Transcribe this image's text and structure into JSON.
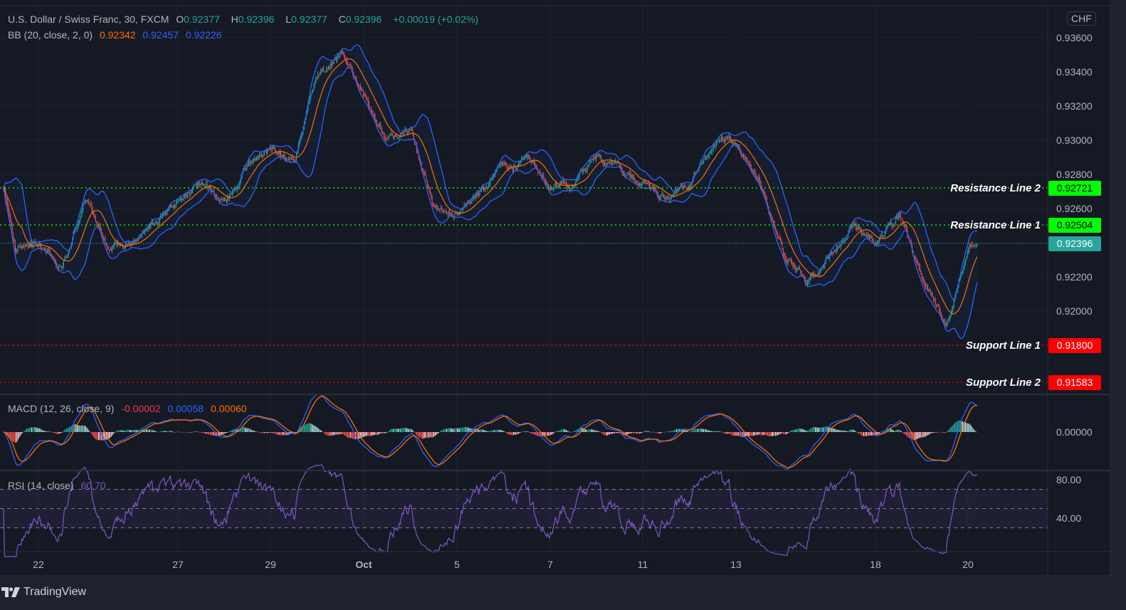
{
  "header": {
    "symbol": "U.S. Dollar / Swiss Franc, 30, FXCM",
    "o_label": "O",
    "o": "0.92377",
    "h_label": "H",
    "h": "0.92396",
    "l_label": "L",
    "l": "0.92377",
    "c_label": "C",
    "c": "0.92396",
    "change": "+0.00019 (+0.02%)",
    "bb_label": "BB (20, close, 2, 0)",
    "bb_basis": "0.92342",
    "bb_upper": "0.92457",
    "bb_lower": "0.92226",
    "currency": "CHF"
  },
  "macd_legend": {
    "label": "MACD (12, 26, close, 9)",
    "hist": "-0.00002",
    "macd": "0.00058",
    "signal": "0.00060"
  },
  "rsi_legend": {
    "label": "RSI (14, close)",
    "value": "60.70"
  },
  "footer": {
    "brand": "TradingView"
  },
  "colors": {
    "background": "#151924",
    "up": "#26a69a",
    "down": "#ef5350",
    "bb_basis": "#ff6d00",
    "bb_band": "#2962ff",
    "macd": "#2962ff",
    "signal": "#ff6d00",
    "rsi": "#7e57c2",
    "resistance": "#00ff00",
    "support": "#ff0000",
    "last_price": "#26a69a"
  },
  "chart_data": {
    "type": "candlestick",
    "title": "U.S. Dollar / Swiss Franc, 30, FXCM",
    "timeframe": "30",
    "ylim": [
      0.91517,
      0.93788
    ],
    "y_ticks": [
      "0.93600",
      "0.93400",
      "0.93200",
      "0.93000",
      "0.92800",
      "0.92600",
      "0.92200",
      "0.92000"
    ],
    "x_ticks": [
      "22",
      "27",
      "29",
      "Oct",
      "5",
      "7",
      "11",
      "13",
      "18",
      "20"
    ],
    "grid": true,
    "last_price": "0.92396",
    "levels": [
      {
        "label": "Resistance Line 2",
        "value": "0.92721",
        "kind": "resistance"
      },
      {
        "label": "Resistance Line 1",
        "value": "0.92504",
        "kind": "resistance"
      },
      {
        "label": "Support Line 1",
        "value": "0.91800",
        "kind": "support"
      },
      {
        "label": "Support Line 2",
        "value": "0.91583",
        "kind": "support"
      }
    ],
    "close_path": [
      {
        "t": "Sep 21 06:00",
        "close": 0.9271
      },
      {
        "t": "Sep 21 12:00",
        "close": 0.9236
      },
      {
        "t": "Sep 22 00:00",
        "close": 0.924
      },
      {
        "t": "Sep 22 12:00",
        "close": 0.9224
      },
      {
        "t": "Sep 23 00:00",
        "close": 0.9265
      },
      {
        "t": "Sep 23 12:00",
        "close": 0.9236
      },
      {
        "t": "Sep 24 00:00",
        "close": 0.924
      },
      {
        "t": "Sep 24 12:00",
        "close": 0.9249
      },
      {
        "t": "Sep 27 00:00",
        "close": 0.9262
      },
      {
        "t": "Sep 27 12:00",
        "close": 0.9275
      },
      {
        "t": "Sep 28 00:00",
        "close": 0.9262
      },
      {
        "t": "Sep 28 12:00",
        "close": 0.9285
      },
      {
        "t": "Sep 29 00:00",
        "close": 0.9294
      },
      {
        "t": "Sep 29 12:00",
        "close": 0.929
      },
      {
        "t": "Sep 30 00:00",
        "close": 0.934
      },
      {
        "t": "Sep 30 12:00",
        "close": 0.9352
      },
      {
        "t": "Oct 1 00:00",
        "close": 0.9324
      },
      {
        "t": "Oct 1 12:00",
        "close": 0.9302
      },
      {
        "t": "Oct 4 00:00",
        "close": 0.9305
      },
      {
        "t": "Oct 4 12:00",
        "close": 0.926
      },
      {
        "t": "Oct 5 00:00",
        "close": 0.9258
      },
      {
        "t": "Oct 5 12:00",
        "close": 0.927
      },
      {
        "t": "Oct 6 00:00",
        "close": 0.9285
      },
      {
        "t": "Oct 6 12:00",
        "close": 0.929
      },
      {
        "t": "Oct 7 00:00",
        "close": 0.9274
      },
      {
        "t": "Oct 7 12:00",
        "close": 0.9275
      },
      {
        "t": "Oct 8 00:00",
        "close": 0.9292
      },
      {
        "t": "Oct 8 12:00",
        "close": 0.928
      },
      {
        "t": "Oct 11 00:00",
        "close": 0.9275
      },
      {
        "t": "Oct 11 12:00",
        "close": 0.9265
      },
      {
        "t": "Oct 12 00:00",
        "close": 0.9275
      },
      {
        "t": "Oct 12 12:00",
        "close": 0.93
      },
      {
        "t": "Oct 13 00:00",
        "close": 0.93
      },
      {
        "t": "Oct 13 12:00",
        "close": 0.9275
      },
      {
        "t": "Oct 14 00:00",
        "close": 0.9236
      },
      {
        "t": "Oct 14 12:00",
        "close": 0.9215
      },
      {
        "t": "Oct 15 00:00",
        "close": 0.9234
      },
      {
        "t": "Oct 15 12:00",
        "close": 0.925
      },
      {
        "t": "Oct 18 00:00",
        "close": 0.924
      },
      {
        "t": "Oct 18 12:00",
        "close": 0.9255
      },
      {
        "t": "Oct 19 00:00",
        "close": 0.9218
      },
      {
        "t": "Oct 19 12:00",
        "close": 0.919
      },
      {
        "t": "Oct 20 00:00",
        "close": 0.9235
      },
      {
        "t": "Oct 20 04:00",
        "close": 0.92396
      }
    ],
    "indicators": {
      "bb": {
        "period": 20,
        "stddev": 2
      },
      "macd": {
        "fast": 12,
        "slow": 26,
        "signal": 9,
        "y_tick": "0.00000"
      },
      "rsi": {
        "period": 14,
        "y_ticks": [
          "80.00",
          "40.00"
        ],
        "bands": [
          70,
          50,
          30
        ]
      }
    }
  }
}
